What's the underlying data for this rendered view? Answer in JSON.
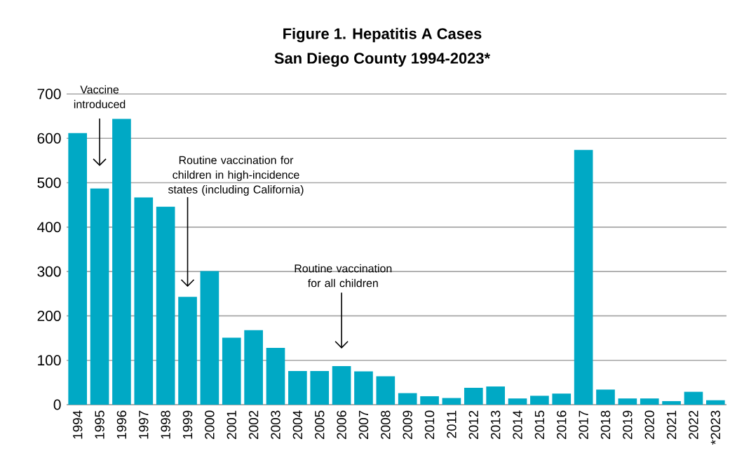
{
  "chart_data": {
    "type": "bar",
    "title": "Figure 1. Hepatitis A Cases",
    "subtitle": "San Diego County 1994-2023*",
    "categories": [
      "1994",
      "1995",
      "1996",
      "1997",
      "1998",
      "1999",
      "2000",
      "2001",
      "2002",
      "2003",
      "2004",
      "2005",
      "2006",
      "2007",
      "2008",
      "2009",
      "2010",
      "2011",
      "2012",
      "2013",
      "2014",
      "2015",
      "2016",
      "2017",
      "2018",
      "2019",
      "2020",
      "2021",
      "2022",
      "*2023"
    ],
    "values": [
      612,
      487,
      644,
      467,
      446,
      243,
      301,
      151,
      168,
      128,
      76,
      76,
      87,
      75,
      64,
      26,
      19,
      15,
      38,
      41,
      14,
      20,
      25,
      574,
      34,
      14,
      14,
      8,
      29,
      10
    ],
    "color": "#00a9c5",
    "ylim": [
      0,
      700
    ],
    "yticks": [
      0,
      100,
      200,
      300,
      400,
      500,
      600,
      700
    ],
    "grid": "y",
    "annotations": [
      "Vaccine introduced",
      "Routine vaccination for children in high-incidence states (including California)",
      "Routine vaccination for all children"
    ]
  }
}
